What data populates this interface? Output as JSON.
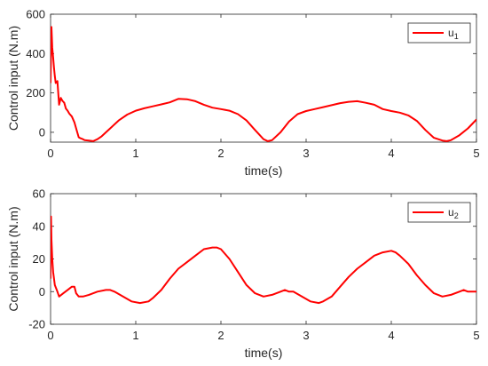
{
  "chart_data": [
    {
      "type": "line",
      "xlabel": "time(s)",
      "ylabel": "Control input (N.m)",
      "xlim": [
        0,
        5
      ],
      "ylim": [
        -50,
        600
      ],
      "xticks": [
        0,
        1,
        2,
        3,
        4,
        5
      ],
      "yticks": [
        0,
        200,
        400,
        600
      ],
      "grid": false,
      "legend_position": "top-right",
      "series": [
        {
          "name": "u",
          "name_subscript": "1",
          "color": "#ff0000",
          "x": [
            0,
            0.01,
            0.02,
            0.03,
            0.04,
            0.05,
            0.06,
            0.08,
            0.1,
            0.12,
            0.14,
            0.16,
            0.18,
            0.2,
            0.22,
            0.25,
            0.28,
            0.3,
            0.33,
            0.35,
            0.38,
            0.4,
            0.45,
            0.5,
            0.55,
            0.6,
            0.7,
            0.8,
            0.9,
            1.0,
            1.1,
            1.2,
            1.3,
            1.4,
            1.5,
            1.6,
            1.7,
            1.8,
            1.9,
            2.0,
            2.1,
            2.2,
            2.3,
            2.4,
            2.5,
            2.55,
            2.6,
            2.7,
            2.8,
            2.9,
            3.0,
            3.1,
            3.2,
            3.3,
            3.4,
            3.5,
            3.6,
            3.7,
            3.8,
            3.9,
            4.0,
            4.1,
            4.2,
            4.3,
            4.4,
            4.5,
            4.6,
            4.65,
            4.7,
            4.8,
            4.9,
            5.0
          ],
          "y": [
            250,
            535,
            430,
            380,
            330,
            285,
            250,
            260,
            140,
            175,
            160,
            150,
            120,
            110,
            95,
            80,
            50,
            20,
            -25,
            -30,
            -35,
            -40,
            -42,
            -45,
            -35,
            -20,
            20,
            60,
            90,
            110,
            122,
            132,
            142,
            152,
            170,
            168,
            158,
            140,
            125,
            118,
            110,
            92,
            60,
            12,
            -35,
            -45,
            -40,
            0,
            55,
            92,
            108,
            118,
            128,
            138,
            148,
            155,
            158,
            150,
            140,
            118,
            108,
            100,
            86,
            58,
            12,
            -28,
            -42,
            -45,
            -40,
            -15,
            20,
            65
          ]
        }
      ]
    },
    {
      "type": "line",
      "xlabel": "time(s)",
      "ylabel": "Control input (N.m)",
      "xlim": [
        0,
        5
      ],
      "ylim": [
        -20,
        60
      ],
      "xticks": [
        0,
        1,
        2,
        3,
        4,
        5
      ],
      "yticks": [
        -20,
        0,
        20,
        40,
        60
      ],
      "grid": false,
      "legend_position": "top-right",
      "series": [
        {
          "name": "u",
          "name_subscript": "2",
          "color": "#ff0000",
          "x": [
            0,
            0.005,
            0.01,
            0.02,
            0.03,
            0.05,
            0.08,
            0.1,
            0.15,
            0.2,
            0.25,
            0.28,
            0.3,
            0.33,
            0.38,
            0.45,
            0.55,
            0.65,
            0.7,
            0.75,
            0.85,
            0.95,
            1.05,
            1.15,
            1.2,
            1.3,
            1.4,
            1.5,
            1.6,
            1.7,
            1.8,
            1.9,
            1.95,
            2.0,
            2.1,
            2.2,
            2.3,
            2.4,
            2.5,
            2.6,
            2.7,
            2.75,
            2.8,
            2.85,
            2.95,
            3.05,
            3.15,
            3.2,
            3.3,
            3.4,
            3.5,
            3.6,
            3.7,
            3.8,
            3.9,
            4.0,
            4.05,
            4.1,
            4.2,
            4.3,
            4.4,
            4.5,
            4.6,
            4.7,
            4.8,
            4.85,
            4.9,
            5.0
          ],
          "y": [
            8,
            46,
            32,
            20,
            12,
            4,
            0,
            -3,
            -1,
            1,
            3,
            3,
            -1,
            -3,
            -3,
            -2,
            0,
            1,
            1,
            0,
            -3,
            -6,
            -7,
            -6,
            -4,
            1,
            8,
            14,
            18,
            22,
            26,
            27,
            27,
            26,
            20,
            12,
            4,
            -1,
            -3,
            -2,
            0,
            1,
            0,
            0,
            -3,
            -6,
            -7,
            -6,
            -3,
            3,
            9,
            14,
            18,
            22,
            24,
            25,
            24,
            22,
            17,
            10,
            4,
            -1,
            -3,
            -2,
            0,
            1,
            0,
            0
          ]
        }
      ]
    }
  ]
}
